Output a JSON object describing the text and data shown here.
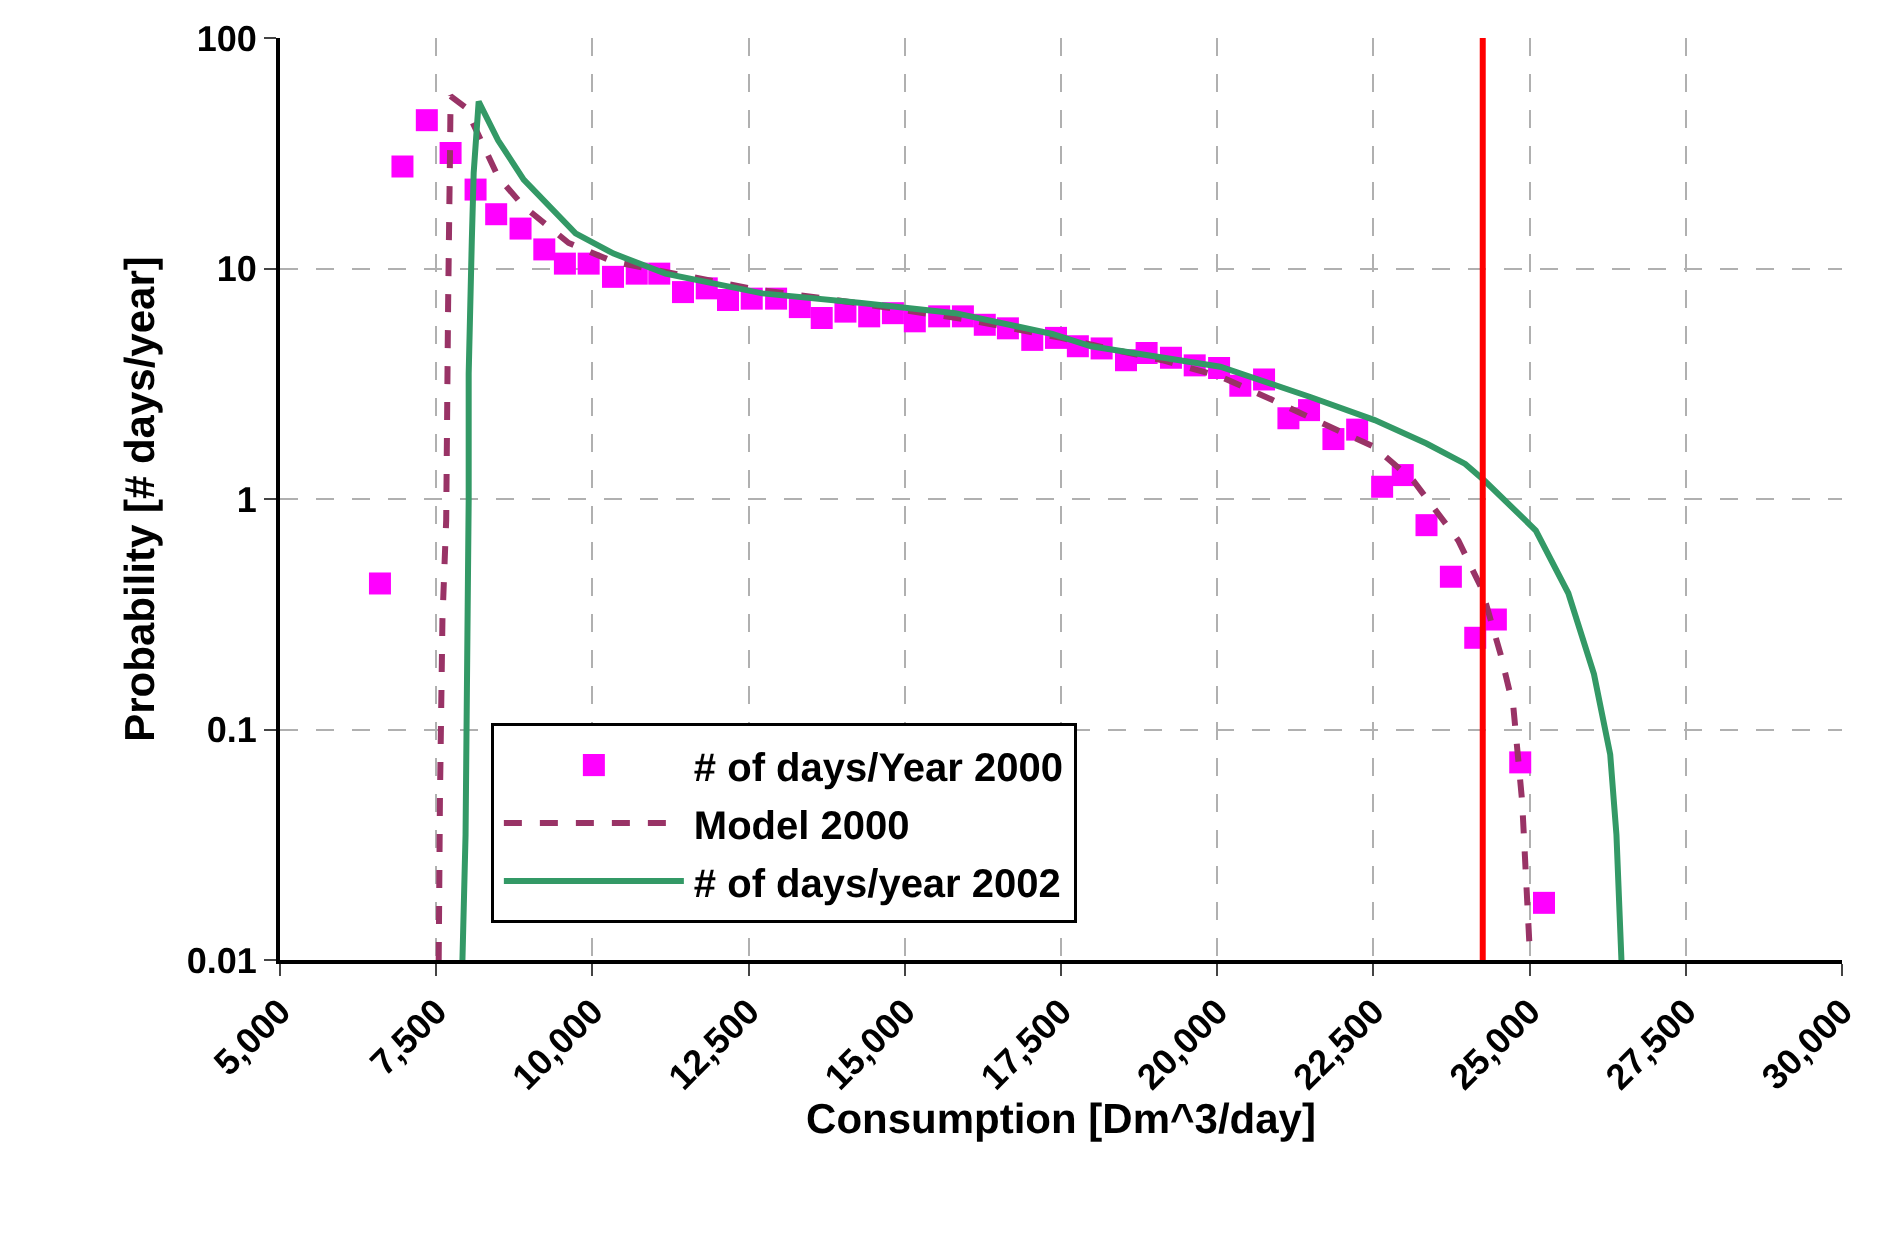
{
  "chart_data": {
    "type": "scatter",
    "xlabel": "Consumption [Dm^3/day]",
    "ylabel": "Probability [# days/year]",
    "log": "y",
    "grid": true,
    "legend": "bottom left",
    "xlim": [
      5000,
      30000
    ],
    "xticks": [
      {
        "value": 5000,
        "label": "5,000"
      },
      {
        "value": 7500,
        "label": "7,500"
      },
      {
        "value": 10000,
        "label": "10,000"
      },
      {
        "value": 12500,
        "label": "12,500"
      },
      {
        "value": 15000,
        "label": "15,000"
      },
      {
        "value": 17500,
        "label": "17,500"
      },
      {
        "value": 20000,
        "label": "20,000"
      },
      {
        "value": 22500,
        "label": "22,500"
      },
      {
        "value": 25000,
        "label": "25,000"
      },
      {
        "value": 27500,
        "label": "27,500"
      },
      {
        "value": 30000,
        "label": "30,000"
      }
    ],
    "ylim": [
      0.01,
      100
    ],
    "yticks": [
      0.01,
      0.1,
      1,
      10,
      100
    ],
    "ref_lines": [
      {
        "axis": "x",
        "value": 24250,
        "color": "#ff0000"
      }
    ],
    "series": [
      {
        "name": "# of days/Year 2000",
        "marker": "square",
        "color": "#ff00ff",
        "x": [
          6600,
          6960,
          7350,
          7730,
          8130,
          8460,
          8850,
          9230,
          9560,
          9940,
          10330,
          10710,
          11070,
          11450,
          11830,
          12170,
          12550,
          12940,
          13320,
          13670,
          14050,
          14430,
          14810,
          15160,
          15550,
          15930,
          16280,
          16650,
          17040,
          17420,
          17770,
          18150,
          18540,
          18870,
          19260,
          19640,
          20030,
          20370,
          20750,
          21140,
          21470,
          21860,
          22240,
          22640,
          22970,
          23350,
          23740,
          24130,
          24460,
          24850,
          25230
        ],
        "values": [
          0.43,
          27.7,
          44,
          31.7,
          22,
          17.2,
          14.9,
          12.1,
          10.5,
          10.5,
          9.2,
          9.5,
          9.5,
          7.9,
          8.2,
          7.3,
          7.4,
          7.4,
          6.8,
          6.1,
          6.5,
          6.2,
          6.4,
          5.9,
          6.2,
          6.2,
          5.7,
          5.5,
          4.9,
          5.0,
          4.6,
          4.5,
          4.0,
          4.3,
          4.1,
          3.8,
          3.7,
          3.1,
          3.3,
          2.24,
          2.43,
          1.82,
          2.0,
          1.13,
          1.27,
          0.77,
          0.46,
          0.25,
          0.3,
          0.072,
          0.0177
        ]
      },
      {
        "name": "Model 2000",
        "type": "line",
        "line_style": "dashed",
        "marker": "none",
        "color": "#993366",
        "x": [
          7540,
          7560,
          7600,
          7660,
          7690,
          7720,
          7730,
          7970,
          8490,
          8900,
          9620,
          10340,
          11580,
          12620,
          13750,
          16000,
          17500,
          19120,
          20050,
          20870,
          21700,
          22520,
          23140,
          23860,
          24230,
          24540,
          24740,
          24880,
          25000
        ],
        "values": [
          0.01,
          0.05,
          0.3,
          0.81,
          6.8,
          30,
          56,
          50,
          25,
          18.6,
          12.9,
          10.7,
          9.2,
          8.1,
          7.4,
          6.0,
          5.0,
          4.0,
          3.4,
          2.7,
          2.12,
          1.68,
          1.2,
          0.66,
          0.41,
          0.21,
          0.125,
          0.049,
          0.0113
        ]
      },
      {
        "name": "# of days/year 2002",
        "type": "line",
        "line_style": "solid",
        "marker": "none",
        "color": "#339966",
        "x": [
          7920,
          7970,
          8020,
          8020,
          8070,
          8100,
          8180,
          8490,
          8900,
          9730,
          10340,
          11170,
          12720,
          14270,
          15810,
          17360,
          17980,
          20050,
          21490,
          22520,
          23350,
          23970,
          24280,
          25100,
          25620,
          26030,
          26290,
          26390,
          26470
        ],
        "values": [
          0.01,
          0.035,
          0.99,
          3.5,
          13.3,
          26,
          53,
          36,
          24.3,
          14.2,
          11.6,
          9.5,
          7.8,
          7.1,
          6.4,
          5.2,
          4.6,
          3.75,
          2.77,
          2.2,
          1.74,
          1.42,
          1.2,
          0.73,
          0.39,
          0.174,
          0.078,
          0.035,
          0.01
        ]
      }
    ]
  }
}
